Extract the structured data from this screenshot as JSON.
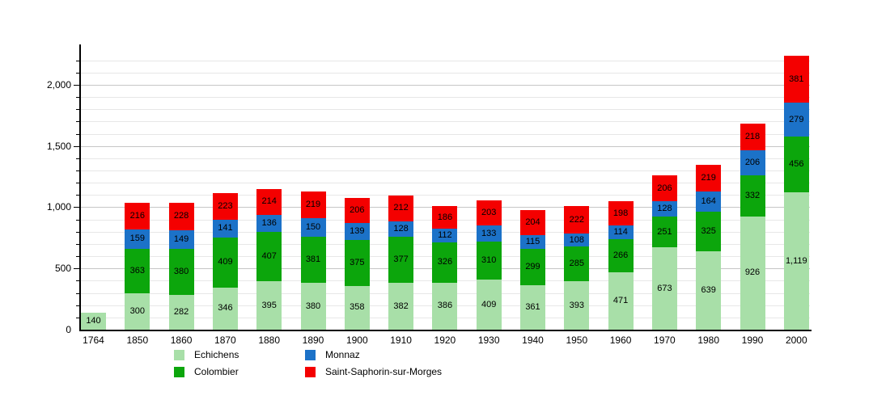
{
  "chart_data": {
    "type": "bar",
    "stacked": true,
    "title": "",
    "xlabel": "",
    "ylabel": "",
    "categories": [
      "1764",
      "1850",
      "1860",
      "1870",
      "1880",
      "1890",
      "1900",
      "1910",
      "1920",
      "1930",
      "1940",
      "1950",
      "1960",
      "1970",
      "1980",
      "1990",
      "2000"
    ],
    "series": [
      {
        "name": "Echichens",
        "color": "#a8dfa8",
        "values": [
          140,
          300,
          282,
          346,
          395,
          380,
          358,
          382,
          386,
          409,
          361,
          393,
          471,
          673,
          639,
          926,
          1119
        ]
      },
      {
        "name": "Colombier",
        "color": "#0ca60c",
        "values": [
          null,
          363,
          380,
          409,
          407,
          381,
          375,
          377,
          326,
          310,
          299,
          285,
          266,
          251,
          325,
          332,
          456
        ]
      },
      {
        "name": "Monnaz",
        "color": "#1c72c8",
        "values": [
          null,
          159,
          149,
          141,
          136,
          150,
          139,
          128,
          112,
          133,
          115,
          108,
          114,
          128,
          164,
          206,
          279
        ]
      },
      {
        "name": "Saint-Saphorin-sur-Morges",
        "color": "#f40000",
        "values": [
          null,
          216,
          228,
          223,
          214,
          219,
          206,
          212,
          186,
          203,
          204,
          222,
          198,
          206,
          219,
          218,
          381
        ]
      }
    ],
    "ylim": [
      0,
      2330
    ],
    "yticks_labeled": [
      0,
      500,
      1000,
      1500,
      2000
    ],
    "grid_minor_step": 100,
    "grid": true,
    "legend_position": "bottom",
    "legend_order": [
      0,
      2,
      1,
      3
    ],
    "bar_value_labels_shown": true
  },
  "layout_text": {}
}
